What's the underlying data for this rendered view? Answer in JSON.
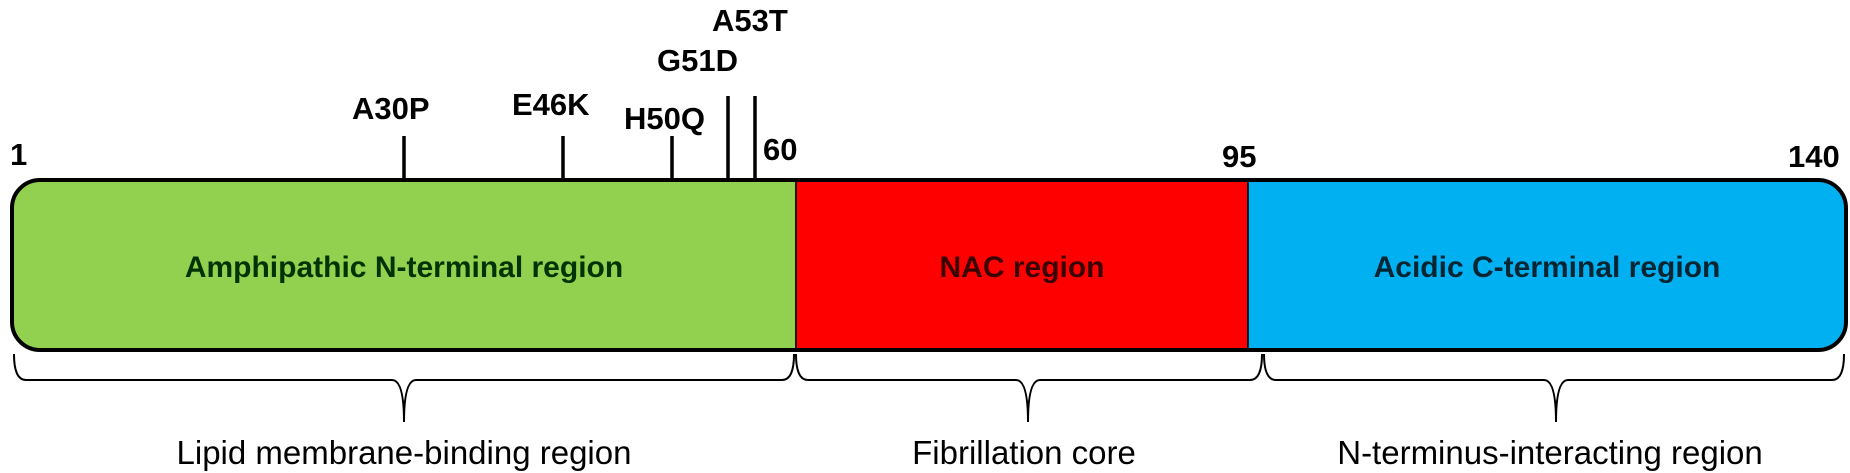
{
  "protein": {
    "positions": {
      "start": "1",
      "p60": "60",
      "p95": "95",
      "end": "140"
    },
    "mutations": [
      {
        "label": "A30P"
      },
      {
        "label": "E46K"
      },
      {
        "label": "H50Q"
      },
      {
        "label": "G51D"
      },
      {
        "label": "A53T"
      }
    ],
    "segments": [
      {
        "label": "Amphipathic N-terminal region",
        "color": "#92d050",
        "text_color": "#003300"
      },
      {
        "label": "NAC region",
        "color": "#ff0000",
        "text_color": "#3a0000"
      },
      {
        "label": "Acidic C-terminal region",
        "color": "#00b0f0",
        "text_color": "#002633"
      }
    ],
    "domains": [
      {
        "label": "Lipid membrane-binding region"
      },
      {
        "label": "Fibrillation core"
      },
      {
        "label": "N-terminus-interacting region"
      }
    ]
  }
}
